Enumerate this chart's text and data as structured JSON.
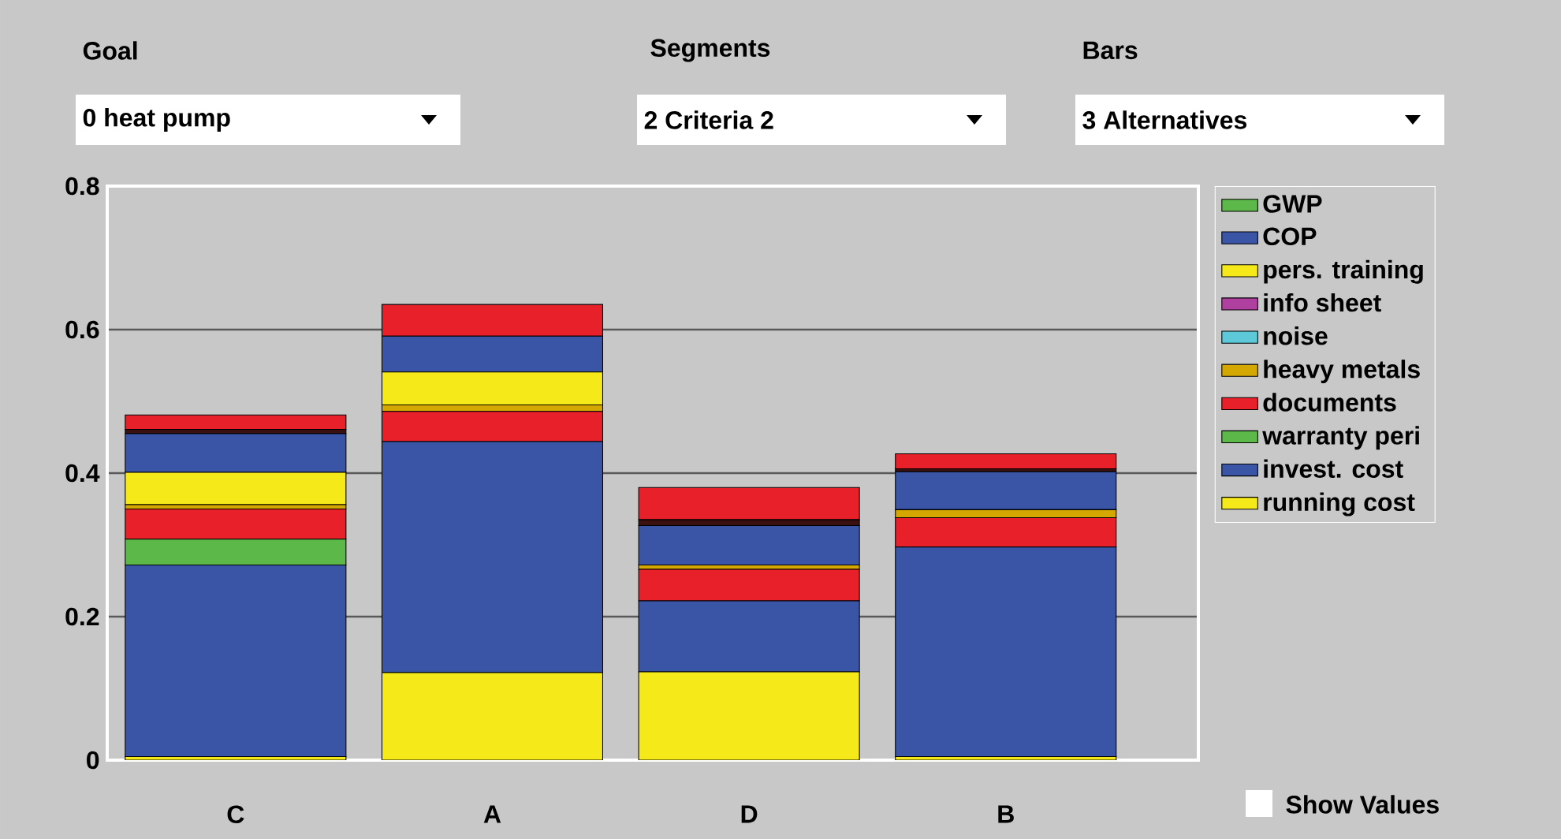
{
  "chart_data": {
    "type": "bar",
    "stacked": true,
    "categories": [
      "C",
      "A",
      "D",
      "B"
    ],
    "series": [
      {
        "name": "running cost",
        "color": "#f5e91a",
        "values": [
          0.005,
          0.122,
          0.123,
          0.005
        ]
      },
      {
        "name": "invest. cost",
        "color": "#3a55a5",
        "values": [
          0.267,
          0.322,
          0.099,
          0.292
        ]
      },
      {
        "name": "warranty peri",
        "color": "#5cb848",
        "values": [
          0.036,
          0,
          0,
          0
        ]
      },
      {
        "name": "documents",
        "color": "#e8202a",
        "values": [
          0.042,
          0.042,
          0.044,
          0.041
        ]
      },
      {
        "name": "heavy metals",
        "color": "#d4a800",
        "values": [
          0.006,
          0.009,
          0.006,
          0.011
        ]
      },
      {
        "name": "noise",
        "color": "#5cc8d8",
        "values": [
          0,
          0,
          0,
          0
        ]
      },
      {
        "name": "info sheet",
        "color": "#b040a0",
        "values": [
          0,
          0,
          0,
          0
        ]
      },
      {
        "name": "pers. training",
        "color": "#f5e91a",
        "values": [
          0.045,
          0.046,
          0,
          0
        ]
      },
      {
        "name": "COP",
        "color": "#3a55a5",
        "values": [
          0.054,
          0.05,
          0.055,
          0.053
        ]
      },
      {
        "name": "GWP",
        "color": "#5cb848",
        "values": [
          0,
          0,
          0,
          0
        ]
      },
      {
        "color": "#3a1010",
        "values": [
          0.006,
          0,
          0.008,
          0.004
        ]
      },
      {
        "color": "#e8202a",
        "values": [
          0.02,
          0.044,
          0.045,
          0.021
        ]
      }
    ],
    "ylim": [
      0,
      0.8
    ],
    "yticks": [
      0,
      0.2,
      0.4,
      0.6,
      0.8
    ],
    "grid": "y",
    "legend": "right",
    "annotations": [
      "Goal",
      "0 heat pump",
      "Segments",
      "2 Criteria 2",
      "Bars",
      "3 Alternatives",
      "Show Values"
    ]
  }
}
